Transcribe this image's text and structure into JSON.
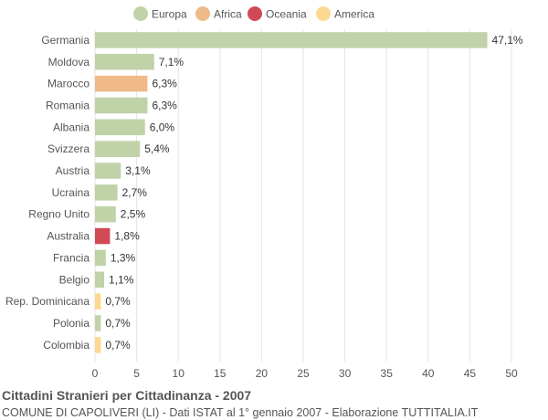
{
  "chart_data": {
    "type": "bar",
    "orientation": "horizontal",
    "categories": [
      "Germania",
      "Moldova",
      "Marocco",
      "Romania",
      "Albania",
      "Svizzera",
      "Austria",
      "Ucraina",
      "Regno Unito",
      "Australia",
      "Francia",
      "Belgio",
      "Rep. Dominicana",
      "Polonia",
      "Colombia"
    ],
    "values": [
      47.1,
      7.1,
      6.3,
      6.3,
      6.0,
      5.4,
      3.1,
      2.7,
      2.5,
      1.8,
      1.3,
      1.1,
      0.7,
      0.7,
      0.7
    ],
    "value_labels": [
      "47,1%",
      "7,1%",
      "6,3%",
      "6,3%",
      "6,0%",
      "5,4%",
      "3,1%",
      "2,7%",
      "2,5%",
      "1,8%",
      "1,3%",
      "1,1%",
      "0,7%",
      "0,7%",
      "0,7%"
    ],
    "groups": [
      "Europa",
      "Europa",
      "Africa",
      "Europa",
      "Europa",
      "Europa",
      "Europa",
      "Europa",
      "Europa",
      "Oceania",
      "Europa",
      "Europa",
      "America",
      "Europa",
      "America"
    ],
    "legend": [
      {
        "name": "Europa",
        "color": "#c0d2a8"
      },
      {
        "name": "Africa",
        "color": "#f0b98a"
      },
      {
        "name": "Oceania",
        "color": "#d04a55"
      },
      {
        "name": "America",
        "color": "#fcd98e"
      }
    ],
    "legend_position": "top",
    "xlim": [
      0,
      50
    ],
    "xticks": [
      0,
      5,
      10,
      15,
      20,
      25,
      30,
      35,
      40,
      45,
      50
    ],
    "grid": true,
    "title": "Cittadini Stranieri per Cittadinanza - 2007",
    "subtitle": "COMUNE DI CAPOLIVERI (LI) - Dati ISTAT al 1° gennaio 2007 - Elaborazione TUTTITALIA.IT"
  }
}
